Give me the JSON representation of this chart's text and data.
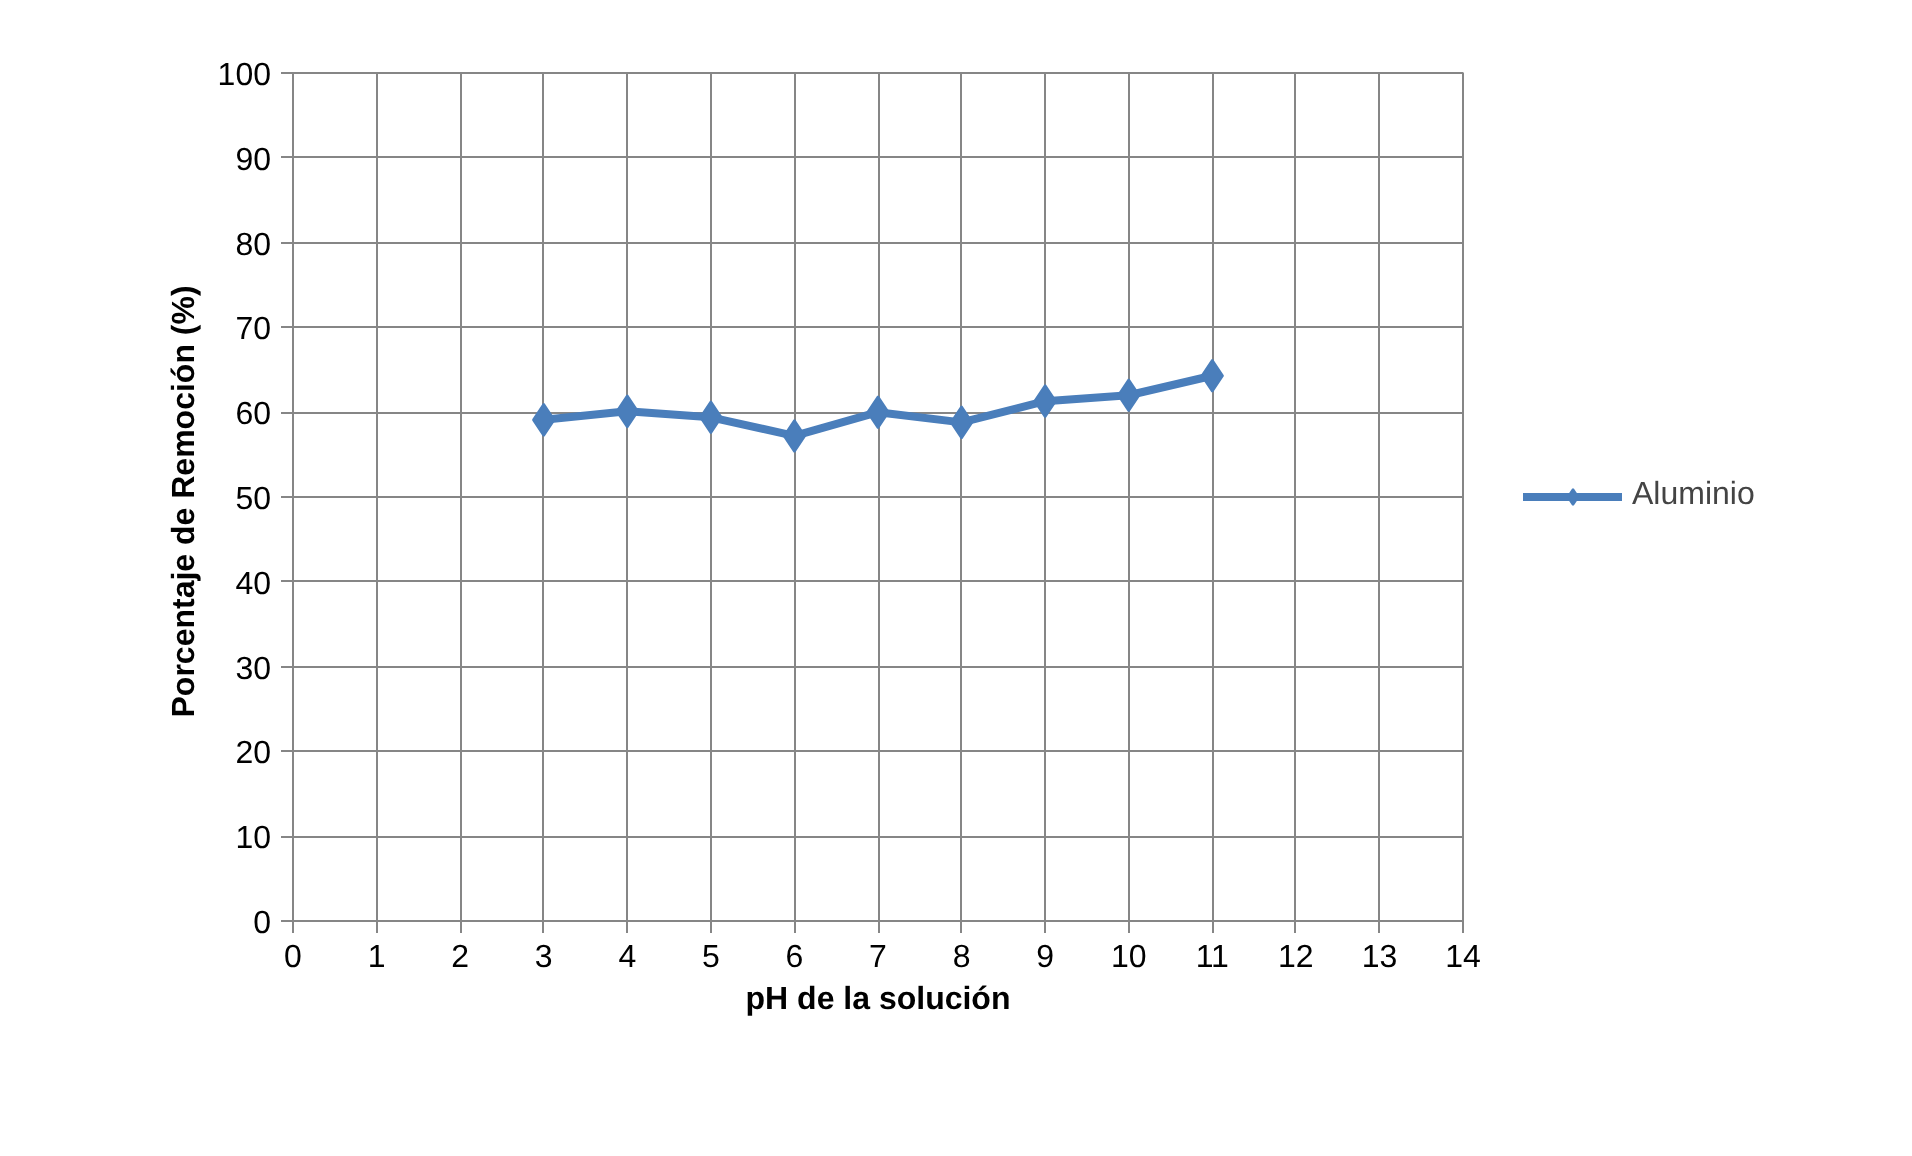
{
  "chart_data": {
    "type": "line",
    "xlabel": "pH de la solución",
    "ylabel": "Porcentaje  de Remoción (%)",
    "x": [
      3,
      4,
      5,
      6,
      7,
      8,
      9,
      10,
      11
    ],
    "series": [
      {
        "name": "Aluminio",
        "color": "#4a7ebb",
        "values": [
          59.1,
          60.1,
          59.4,
          57.2,
          60.0,
          58.8,
          61.3,
          62.0,
          64.3
        ]
      }
    ],
    "xlim": [
      0,
      14
    ],
    "xticks": [
      0,
      1,
      2,
      3,
      4,
      5,
      6,
      7,
      8,
      9,
      10,
      11,
      12,
      13,
      14
    ],
    "ylim": [
      0,
      100
    ],
    "yticks": [
      0,
      10,
      20,
      30,
      40,
      50,
      60,
      70,
      80,
      90,
      100
    ],
    "grid": true,
    "legend": "right",
    "marker": "diamond",
    "line_style": "solid"
  }
}
